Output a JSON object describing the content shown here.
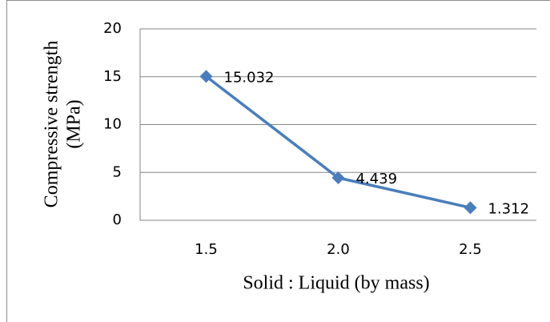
{
  "chart_data": {
    "type": "line",
    "xlabel": "Solid :  Liquid (by mass)",
    "ylabel": [
      "Compressive strength",
      "(MPa)"
    ],
    "categories": [
      "1.5",
      "2.0",
      "2.5"
    ],
    "values": [
      15.032,
      4.439,
      1.312
    ],
    "color": "#4a7ebb",
    "ylim": [
      0,
      20
    ],
    "yticks": [
      0,
      5,
      10,
      15,
      20
    ],
    "grid": true
  }
}
